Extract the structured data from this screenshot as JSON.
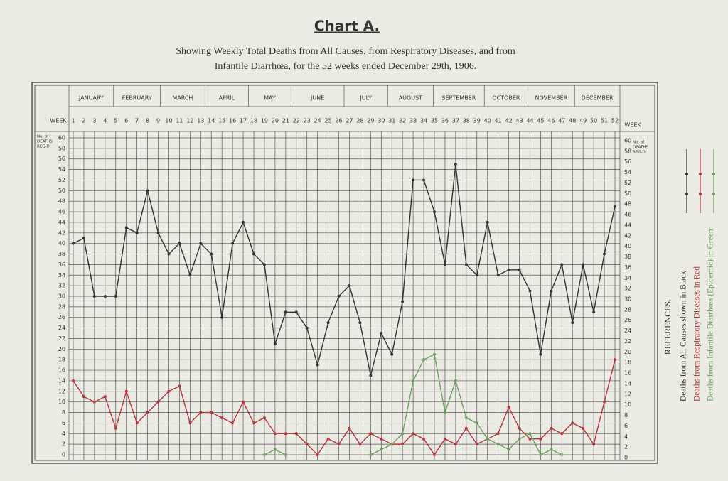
{
  "chart_data": {
    "type": "line",
    "title": "Chart A.",
    "subtitle": [
      "Showing Weekly Total Deaths from All Causes, from Respiratory Diseases, and from",
      "Infantile Diarrhœa, for the 52 weeks ended December 29th, 1906."
    ],
    "months": [
      "JANUARY",
      "FEBRUARY",
      "MARCH",
      "APRIL",
      "MAY",
      "JUNE",
      "JULY",
      "AUGUST",
      "SEPTEMBER",
      "OCTOBER",
      "NOVEMBER",
      "DECEMBER"
    ],
    "xlabel": "WEEK",
    "ylabel": [
      "No. of",
      "DEATHS",
      "REG-D."
    ],
    "x": [
      1,
      2,
      3,
      4,
      5,
      6,
      7,
      8,
      9,
      10,
      11,
      12,
      13,
      14,
      15,
      16,
      17,
      18,
      19,
      20,
      21,
      22,
      23,
      24,
      25,
      26,
      27,
      28,
      29,
      30,
      31,
      32,
      33,
      34,
      35,
      36,
      37,
      38,
      39,
      40,
      41,
      42,
      43,
      44,
      45,
      46,
      47,
      48,
      49,
      50,
      51,
      52
    ],
    "xlim": [
      1,
      52
    ],
    "ylim": [
      0,
      60
    ],
    "yticks": [
      0,
      2,
      4,
      6,
      8,
      10,
      12,
      14,
      16,
      18,
      20,
      22,
      24,
      26,
      28,
      30,
      32,
      34,
      36,
      38,
      40,
      42,
      44,
      46,
      48,
      50,
      52,
      54,
      56,
      58,
      60
    ],
    "grid": true,
    "legend_title": "REFERENCES.",
    "series": [
      {
        "name": "Deaths from All Causes shown   in Black",
        "color": "#333333",
        "values": [
          40,
          41,
          30,
          30,
          30,
          43,
          42,
          50,
          42,
          38,
          40,
          34,
          40,
          38,
          26,
          40,
          44,
          38,
          36,
          21,
          27,
          27,
          24,
          17,
          25,
          30,
          32,
          25,
          15,
          23,
          19,
          29,
          52,
          52,
          46,
          36,
          55,
          36,
          34,
          44,
          34,
          35,
          35,
          31,
          19,
          31,
          36,
          25,
          36,
          27,
          38,
          47
        ]
      },
      {
        "name": "Deaths from Respiratory Diseases in Red",
        "color": "#b3343a",
        "values": [
          14,
          11,
          10,
          11,
          5,
          12,
          6,
          8,
          10,
          12,
          13,
          6,
          8,
          8,
          7,
          6,
          10,
          6,
          7,
          4,
          4,
          4,
          2,
          0,
          3,
          2,
          5,
          2,
          4,
          3,
          2,
          2,
          4,
          3,
          0,
          3,
          2,
          5,
          2,
          3,
          4,
          9,
          5,
          3,
          3,
          5,
          4,
          6,
          5,
          2,
          10,
          18
        ]
      },
      {
        "name": "Deaths from Infantile Diarrhœa (Epidemic) in Green",
        "color": "#6d9e62",
        "values": [
          null,
          null,
          null,
          null,
          null,
          null,
          null,
          null,
          null,
          null,
          null,
          null,
          null,
          null,
          null,
          null,
          null,
          null,
          0,
          1,
          0,
          null,
          null,
          null,
          null,
          null,
          null,
          null,
          0,
          1,
          2,
          4,
          14,
          18,
          19,
          8,
          14,
          7,
          6,
          3,
          2,
          1,
          3,
          4,
          0,
          1,
          0,
          null,
          null,
          null,
          null,
          null
        ]
      }
    ]
  }
}
